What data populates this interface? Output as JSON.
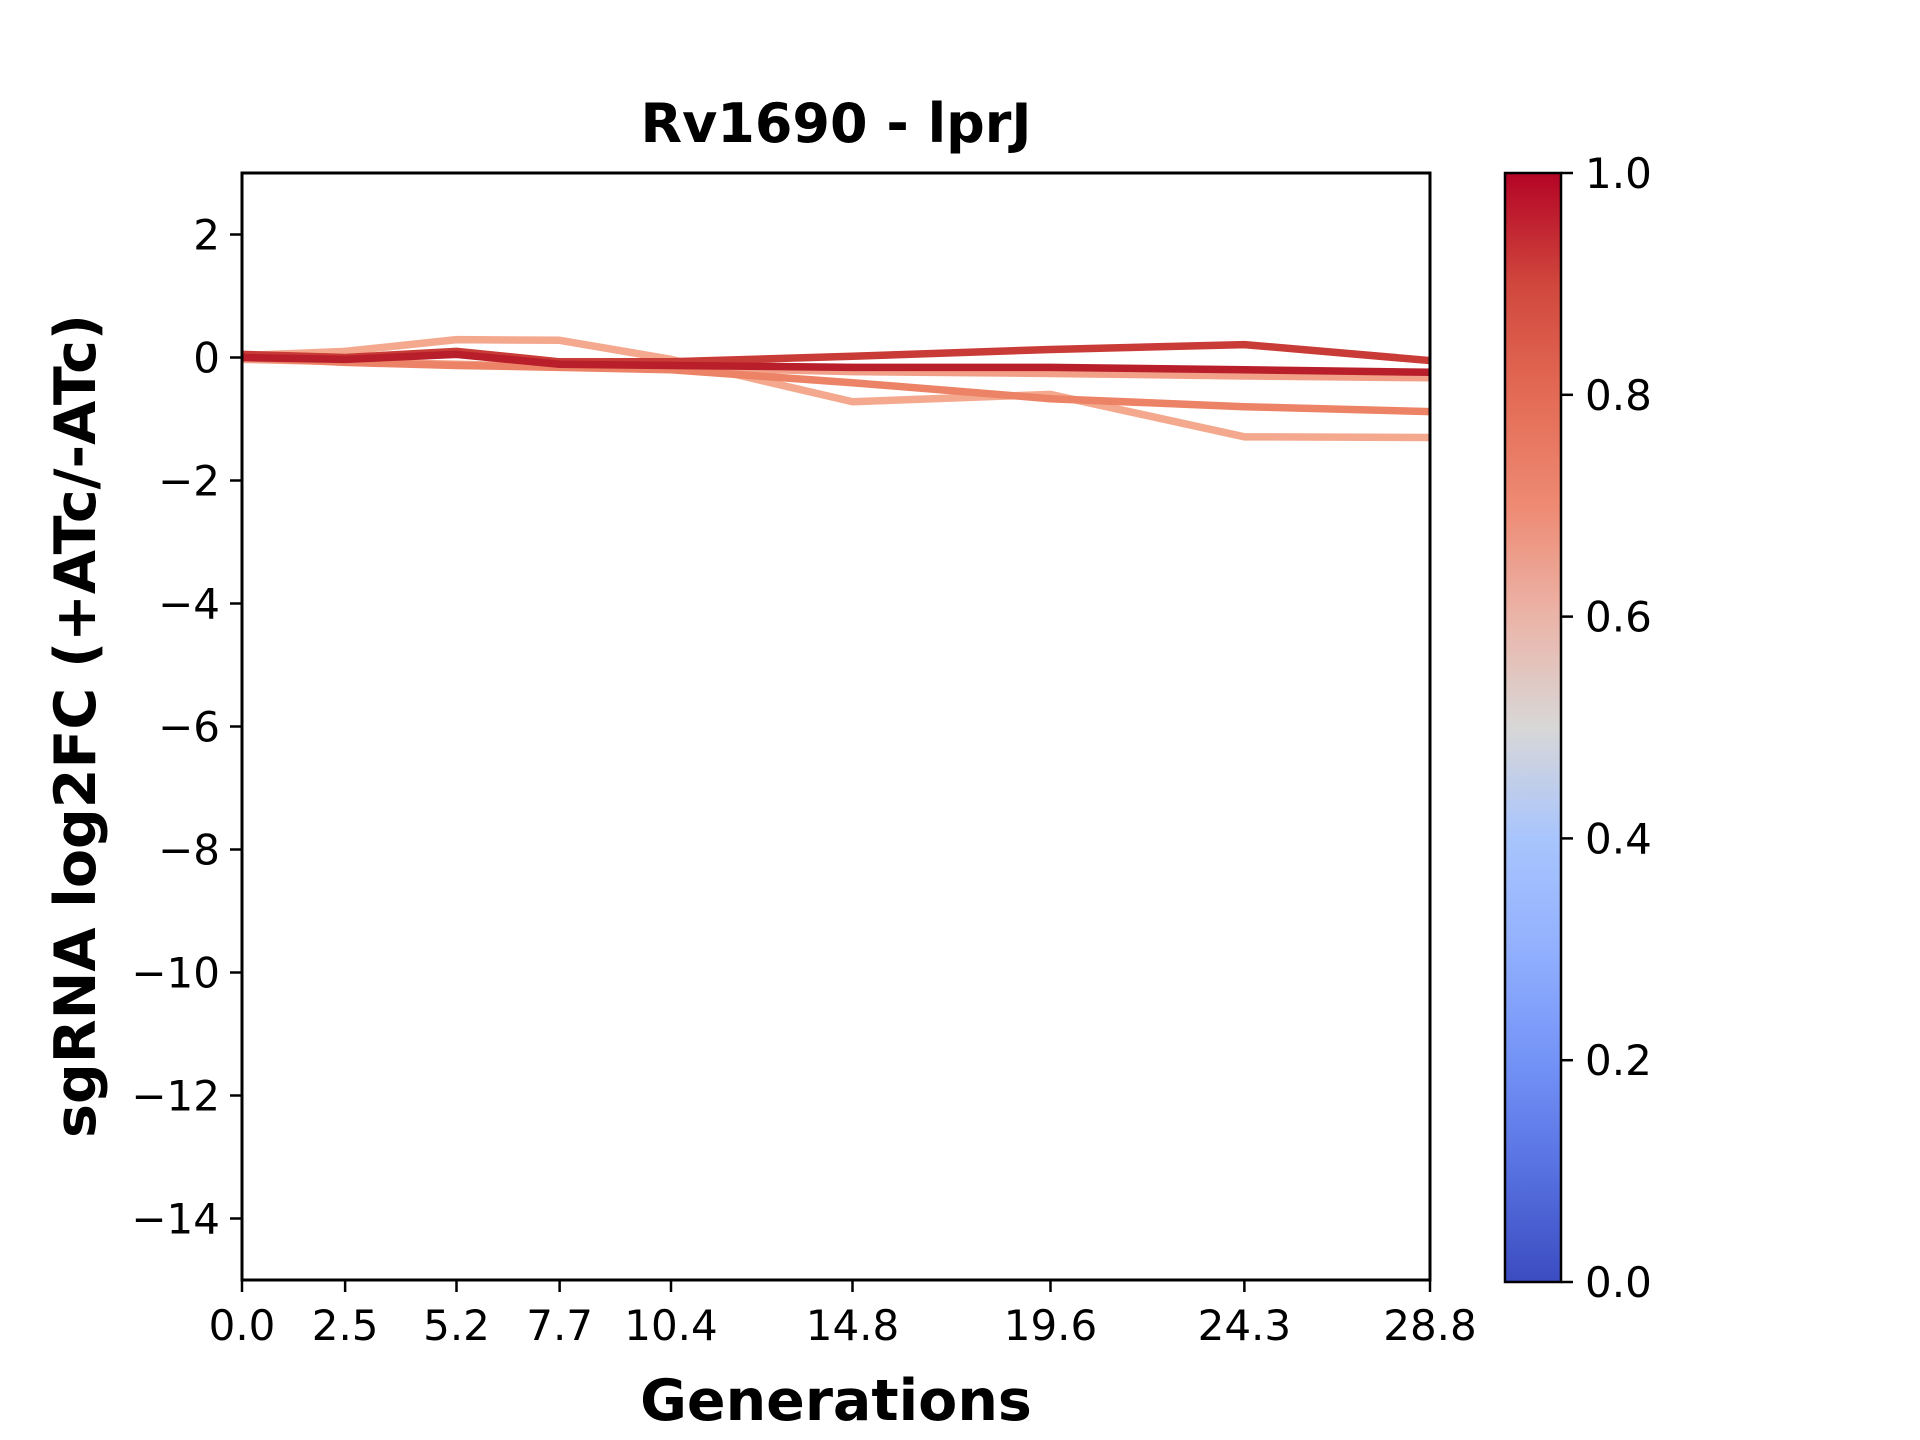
{
  "figure": {
    "title": "Rv1690 - lprJ",
    "xlabel": "Generations",
    "ylabel": "sgRNA log2FC (+ATc/-ATc)"
  },
  "chart_data": {
    "type": "line",
    "title": "Rv1690 - lprJ",
    "xlabel": "Generations",
    "ylabel": "sgRNA log2FC (+ATc/-ATc)",
    "grid": false,
    "xlim": [
      0,
      28.8
    ],
    "ylim": [
      -15,
      3
    ],
    "x": [
      0.0,
      2.5,
      5.2,
      7.7,
      10.4,
      14.8,
      19.6,
      24.3,
      28.8
    ],
    "x_tick_labels": [
      "0.0",
      "2.5",
      "5.2",
      "7.7",
      "10.4",
      "14.8",
      "19.6",
      "24.3",
      "28.8"
    ],
    "y_ticks": [
      2,
      0,
      -2,
      -4,
      -6,
      -8,
      -10,
      -12,
      -14
    ],
    "y_tick_labels": [
      "2",
      "0",
      "−2",
      "−4",
      "−6",
      "−8",
      "−10",
      "−12",
      "−14"
    ],
    "series": [
      {
        "name": "line-1",
        "colormap_value": 0.65,
        "color": "#f4a98e",
        "values": [
          0.03,
          0.1,
          0.29,
          0.28,
          -0.03,
          -0.72,
          -0.6,
          -1.29,
          -1.3
        ]
      },
      {
        "name": "line-2",
        "colormap_value": 0.68,
        "color": "#f2a188",
        "values": [
          -0.03,
          -0.07,
          -0.11,
          -0.15,
          -0.16,
          -0.23,
          -0.26,
          -0.3,
          -0.33
        ]
      },
      {
        "name": "line-3",
        "colormap_value": 0.77,
        "color": "#ec8366",
        "values": [
          0.0,
          -0.08,
          -0.13,
          -0.16,
          -0.2,
          -0.41,
          -0.67,
          -0.8,
          -0.88
        ]
      },
      {
        "name": "line-4",
        "colormap_value": 0.92,
        "color": "#c93b36",
        "values": [
          0.05,
          0.0,
          0.1,
          -0.07,
          -0.07,
          0.02,
          0.13,
          0.21,
          -0.05
        ]
      },
      {
        "name": "line-5",
        "colormap_value": 0.97,
        "color": "#b81f2b",
        "values": [
          0.0,
          -0.03,
          0.05,
          -0.11,
          -0.13,
          -0.16,
          -0.16,
          -0.2,
          -0.24
        ]
      }
    ],
    "colorbar": {
      "orientation": "vertical",
      "position": "right",
      "range": [
        0.0,
        1.0
      ],
      "tick_labels": [
        "1.0",
        "0.8",
        "0.6",
        "0.4",
        "0.2",
        "0.0"
      ],
      "tick_values": [
        1.0,
        0.8,
        0.6,
        0.4,
        0.2,
        0.0
      ],
      "colormap": "coolwarm",
      "gradient_stops": [
        {
          "v": 1.0,
          "c": "#b40426"
        },
        {
          "v": 0.9,
          "c": "#d0473d"
        },
        {
          "v": 0.8,
          "c": "#e36b55"
        },
        {
          "v": 0.7,
          "c": "#ee8a73"
        },
        {
          "v": 0.6,
          "c": "#ebb4a8"
        },
        {
          "v": 0.5,
          "c": "#d8d7d7"
        },
        {
          "v": 0.4,
          "c": "#a9c5fd"
        },
        {
          "v": 0.3,
          "c": "#92b0fe"
        },
        {
          "v": 0.2,
          "c": "#7493f7"
        },
        {
          "v": 0.1,
          "c": "#5771e1"
        },
        {
          "v": 0.0,
          "c": "#3b4cc0"
        }
      ]
    },
    "style": {
      "line_width": 7.5,
      "spine_color": "#000000",
      "background": "#ffffff"
    }
  }
}
